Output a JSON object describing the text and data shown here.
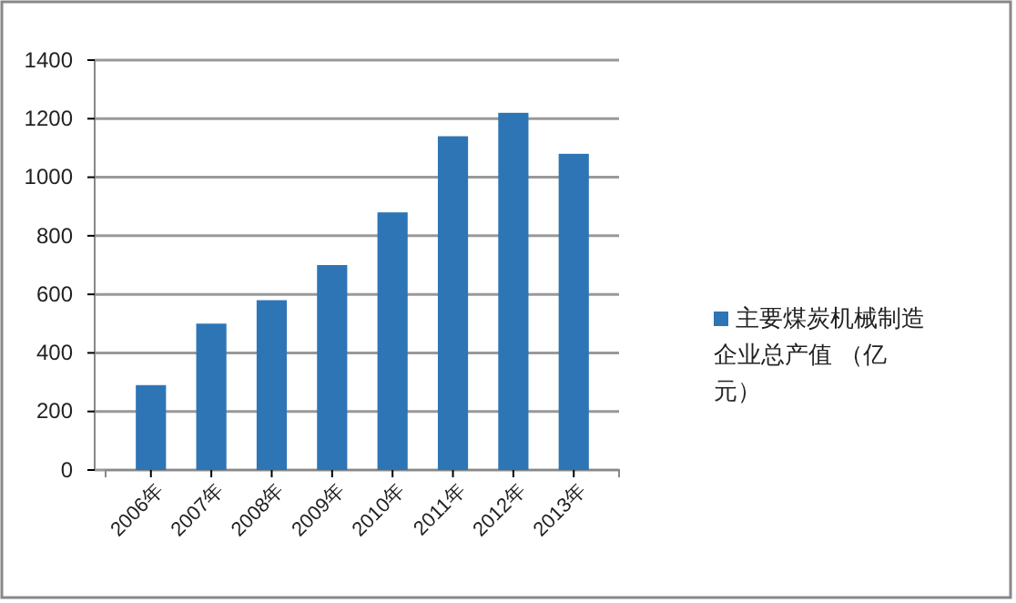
{
  "chart_data": {
    "type": "bar",
    "categories": [
      "2006年",
      "2007年",
      "2008年",
      "2009年",
      "2010年",
      "2011年",
      "2012年",
      "2013年"
    ],
    "series": [
      {
        "name": "主要煤炭机械制造企业总产值 （亿元）",
        "color": "#2e75b6",
        "values": [
          290,
          500,
          580,
          700,
          880,
          1140,
          1220,
          1080
        ]
      }
    ],
    "ylim": [
      0,
      1400
    ],
    "yticks": [
      0,
      200,
      400,
      600,
      800,
      1000,
      1200,
      1400
    ],
    "grid": "y",
    "legend": "right"
  }
}
